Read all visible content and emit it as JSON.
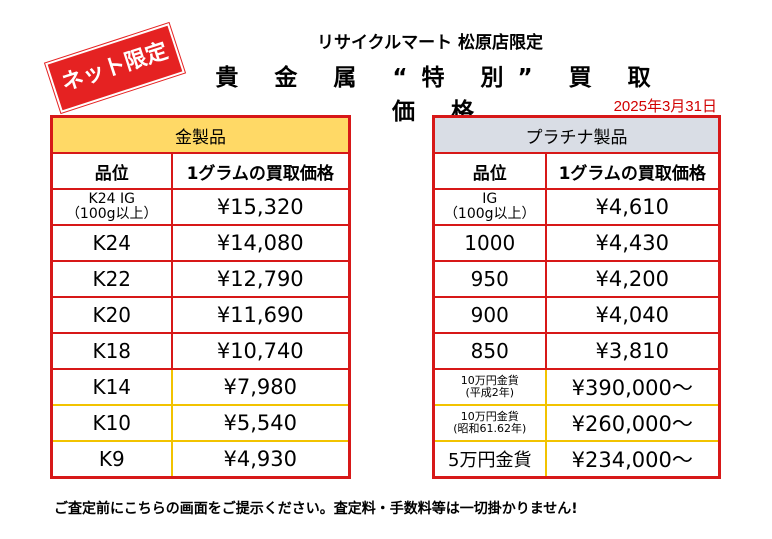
{
  "badge": "ネット限定",
  "store_line": "リサイクルマート 松原店限定",
  "title": "貴 金 属 “特 別” 買 取 価 格",
  "date": "2025年3月31日",
  "gold_table": {
    "header": "金製品",
    "col_grade": "品位",
    "col_price": "1グラムの買取価格",
    "rows": [
      {
        "grade_line1": "K24 IG",
        "grade_line2": "（100g以上）",
        "price": "¥15,320"
      },
      {
        "grade": "K24",
        "price": "¥14,080"
      },
      {
        "grade": "K22",
        "price": "¥12,790"
      },
      {
        "grade": "K20",
        "price": "¥11,690"
      },
      {
        "grade": "K18",
        "price": "¥10,740"
      },
      {
        "grade": "K14",
        "price": "¥7,980"
      },
      {
        "grade": "K10",
        "price": "¥5,540"
      },
      {
        "grade": "K9",
        "price": "¥4,930"
      }
    ]
  },
  "platinum_table": {
    "header": "プラチナ製品",
    "col_grade": "品位",
    "col_price": "1グラムの買取価格",
    "rows": [
      {
        "grade_line1": "IG",
        "grade_line2": "（100g以上）",
        "price": "¥4,610"
      },
      {
        "grade": "1000",
        "price": "¥4,430"
      },
      {
        "grade": "950",
        "price": "¥4,200"
      },
      {
        "grade": "900",
        "price": "¥4,040"
      },
      {
        "grade": "850",
        "price": "¥3,810"
      },
      {
        "grade_line1": "10万円金貨",
        "grade_line2": "(平成2年)",
        "price": "¥390,000〜"
      },
      {
        "grade_line1": "10万円金貨",
        "grade_line2": "(昭和61.62年)",
        "price": "¥260,000〜"
      },
      {
        "grade": "5万円金貨",
        "price": "¥234,000〜"
      }
    ]
  },
  "footer_note": "ご査定前にこちらの画面をご提示ください。査定料・手数料等は一切掛かりません!"
}
